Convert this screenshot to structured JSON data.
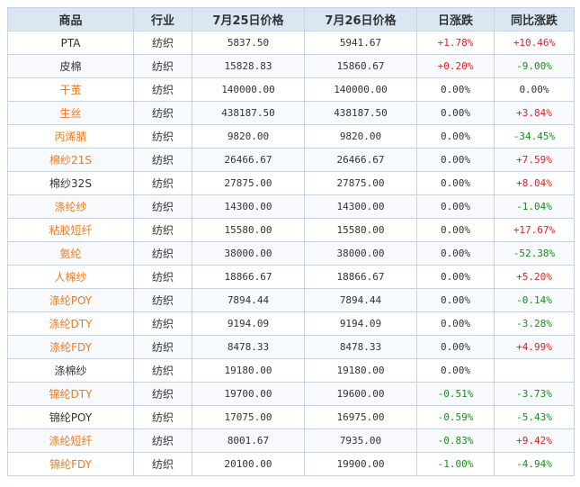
{
  "headers": {
    "product": "商品",
    "industry": "行业",
    "date1": "7月25日价格",
    "date2": "7月26日价格",
    "daily_change": "日涨跌",
    "yoy_change": "同比涨跌"
  },
  "colors": {
    "link": "#f07b1f",
    "up": "#e02020",
    "down": "#1b8a1b",
    "header_bg": "#dbe6f3",
    "border": "#c9d3e0"
  },
  "rows": [
    {
      "name": "PTA",
      "link": false,
      "industry": "纺织",
      "p1": "5837.50",
      "p2": "5941.67",
      "day": "+1.78%",
      "day_dir": "up",
      "yoy": "+10.46%",
      "yoy_dir": "up"
    },
    {
      "name": "皮棉",
      "link": false,
      "industry": "纺织",
      "p1": "15828.83",
      "p2": "15860.67",
      "day": "+0.20%",
      "day_dir": "up",
      "yoy": "-9.00%",
      "yoy_dir": "down"
    },
    {
      "name": "干茧",
      "link": true,
      "industry": "纺织",
      "p1": "140000.00",
      "p2": "140000.00",
      "day": "0.00%",
      "day_dir": "flat",
      "yoy": "0.00%",
      "yoy_dir": "flat"
    },
    {
      "name": "生丝",
      "link": true,
      "industry": "纺织",
      "p1": "438187.50",
      "p2": "438187.50",
      "day": "0.00%",
      "day_dir": "flat",
      "yoy": "+3.84%",
      "yoy_dir": "up"
    },
    {
      "name": "丙烯腈",
      "link": true,
      "industry": "纺织",
      "p1": "9820.00",
      "p2": "9820.00",
      "day": "0.00%",
      "day_dir": "flat",
      "yoy": "-34.45%",
      "yoy_dir": "down"
    },
    {
      "name": "棉纱21S",
      "link": true,
      "industry": "纺织",
      "p1": "26466.67",
      "p2": "26466.67",
      "day": "0.00%",
      "day_dir": "flat",
      "yoy": "+7.59%",
      "yoy_dir": "up"
    },
    {
      "name": "棉纱32S",
      "link": false,
      "industry": "纺织",
      "p1": "27875.00",
      "p2": "27875.00",
      "day": "0.00%",
      "day_dir": "flat",
      "yoy": "+8.04%",
      "yoy_dir": "up"
    },
    {
      "name": "涤纶纱",
      "link": true,
      "industry": "纺织",
      "p1": "14300.00",
      "p2": "14300.00",
      "day": "0.00%",
      "day_dir": "flat",
      "yoy": "-1.04%",
      "yoy_dir": "down"
    },
    {
      "name": "粘胶短纤",
      "link": true,
      "industry": "纺织",
      "p1": "15580.00",
      "p2": "15580.00",
      "day": "0.00%",
      "day_dir": "flat",
      "yoy": "+17.67%",
      "yoy_dir": "up"
    },
    {
      "name": "氨纶",
      "link": true,
      "industry": "纺织",
      "p1": "38000.00",
      "p2": "38000.00",
      "day": "0.00%",
      "day_dir": "flat",
      "yoy": "-52.38%",
      "yoy_dir": "down"
    },
    {
      "name": "人棉纱",
      "link": true,
      "industry": "纺织",
      "p1": "18866.67",
      "p2": "18866.67",
      "day": "0.00%",
      "day_dir": "flat",
      "yoy": "+5.20%",
      "yoy_dir": "up"
    },
    {
      "name": "涤纶POY",
      "link": true,
      "industry": "纺织",
      "p1": "7894.44",
      "p2": "7894.44",
      "day": "0.00%",
      "day_dir": "flat",
      "yoy": "-0.14%",
      "yoy_dir": "down"
    },
    {
      "name": "涤纶DTY",
      "link": true,
      "industry": "纺织",
      "p1": "9194.09",
      "p2": "9194.09",
      "day": "0.00%",
      "day_dir": "flat",
      "yoy": "-3.28%",
      "yoy_dir": "down"
    },
    {
      "name": "涤纶FDY",
      "link": true,
      "industry": "纺织",
      "p1": "8478.33",
      "p2": "8478.33",
      "day": "0.00%",
      "day_dir": "flat",
      "yoy": "+4.99%",
      "yoy_dir": "up"
    },
    {
      "name": "涤棉纱",
      "link": false,
      "industry": "纺织",
      "p1": "19180.00",
      "p2": "19180.00",
      "day": "0.00%",
      "day_dir": "flat",
      "yoy": "",
      "yoy_dir": "flat"
    },
    {
      "name": "锦纶DTY",
      "link": true,
      "industry": "纺织",
      "p1": "19700.00",
      "p2": "19600.00",
      "day": "-0.51%",
      "day_dir": "down",
      "yoy": "-3.73%",
      "yoy_dir": "down"
    },
    {
      "name": "锦纶POY",
      "link": false,
      "industry": "纺织",
      "p1": "17075.00",
      "p2": "16975.00",
      "day": "-0.59%",
      "day_dir": "down",
      "yoy": "-5.43%",
      "yoy_dir": "down"
    },
    {
      "name": "涤纶短纤",
      "link": true,
      "industry": "纺织",
      "p1": "8001.67",
      "p2": "7935.00",
      "day": "-0.83%",
      "day_dir": "down",
      "yoy": "+9.42%",
      "yoy_dir": "up"
    },
    {
      "name": "锦纶FDY",
      "link": true,
      "industry": "纺织",
      "p1": "20100.00",
      "p2": "19900.00",
      "day": "-1.00%",
      "day_dir": "down",
      "yoy": "-4.94%",
      "yoy_dir": "down"
    }
  ]
}
